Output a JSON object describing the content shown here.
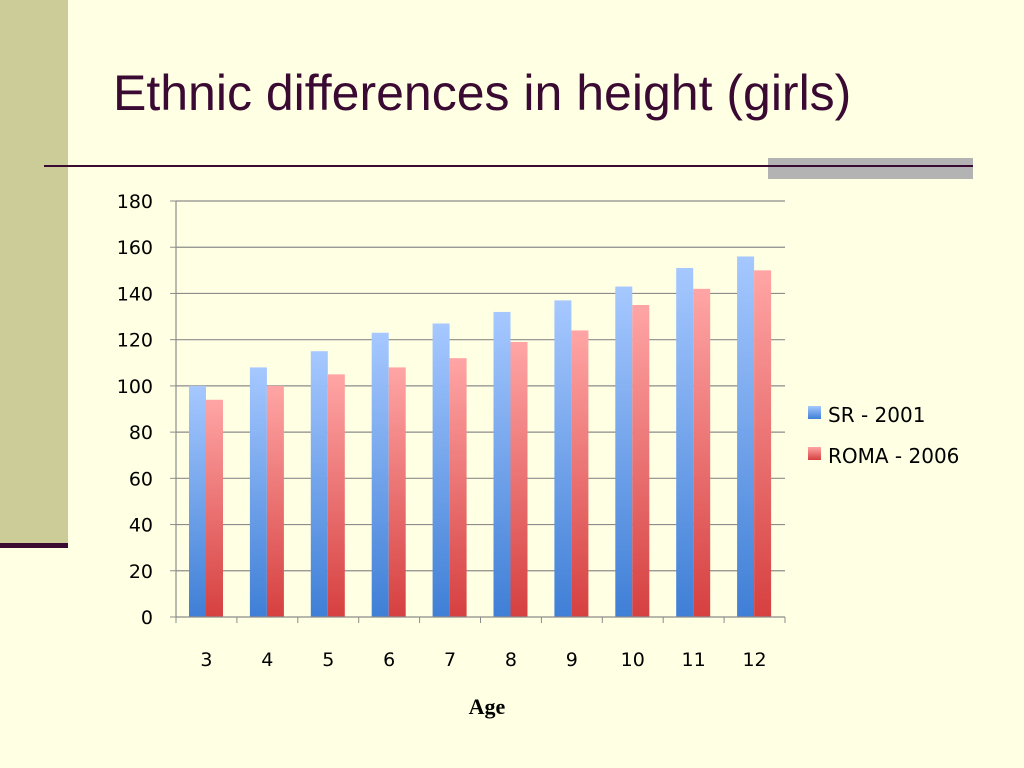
{
  "slide": {
    "title": "Ethnic differences in height (girls)"
  },
  "colors": {
    "sr_top": "#A6C8FF",
    "sr_bottom": "#3F7FD6",
    "roma_top": "#FFA5A5",
    "roma_bottom": "#D64040"
  },
  "chart_data": {
    "type": "bar",
    "categories": [
      "3",
      "4",
      "5",
      "6",
      "7",
      "8",
      "9",
      "10",
      "11",
      "12"
    ],
    "series": [
      {
        "name": "SR - 2001",
        "values": [
          100,
          108,
          115,
          123,
          127,
          132,
          137,
          143,
          151,
          156
        ]
      },
      {
        "name": "ROMA - 2006",
        "values": [
          94,
          100,
          105,
          108,
          112,
          119,
          124,
          135,
          142,
          150
        ]
      }
    ],
    "xlabel": "Age",
    "ylim": [
      0,
      180
    ],
    "yticks": [
      0,
      20,
      40,
      60,
      80,
      100,
      120,
      140,
      160,
      180
    ],
    "grid": true,
    "legend": "right"
  }
}
